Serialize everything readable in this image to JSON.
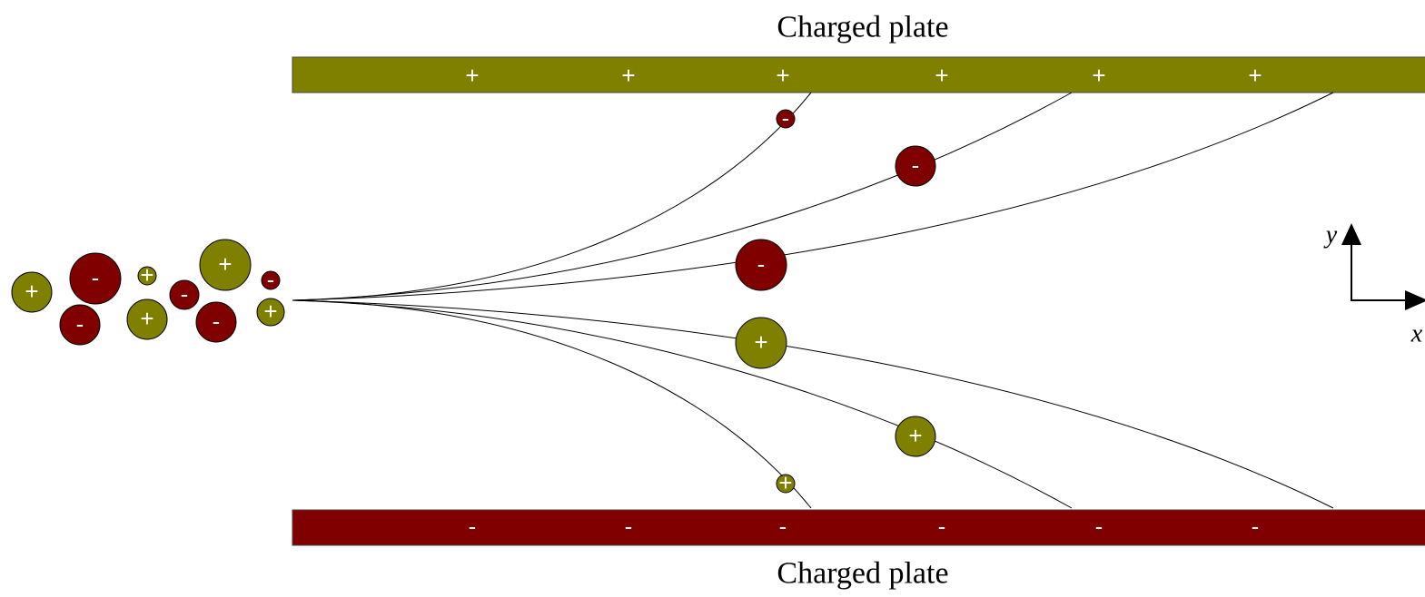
{
  "top_plate": {
    "label": "Charged plate",
    "signs": [
      "+",
      "+",
      "+",
      "+",
      "+",
      "+"
    ]
  },
  "bottom_plate": {
    "label": "Charged plate",
    "signs": [
      "-",
      "-",
      "-",
      "-",
      "-",
      "-"
    ]
  },
  "particles": [
    {
      "sign": "-"
    },
    {
      "sign": "-"
    },
    {
      "sign": "-"
    },
    {
      "sign": "+"
    },
    {
      "sign": "+"
    },
    {
      "sign": "+"
    },
    {
      "sign": "+"
    },
    {
      "sign": "-"
    },
    {
      "sign": "-"
    },
    {
      "sign": "+"
    },
    {
      "sign": "+"
    },
    {
      "sign": "-"
    },
    {
      "sign": "+"
    },
    {
      "sign": "-"
    },
    {
      "sign": "-"
    },
    {
      "sign": "+"
    }
  ],
  "axes": {
    "y": "y",
    "x": "x"
  }
}
